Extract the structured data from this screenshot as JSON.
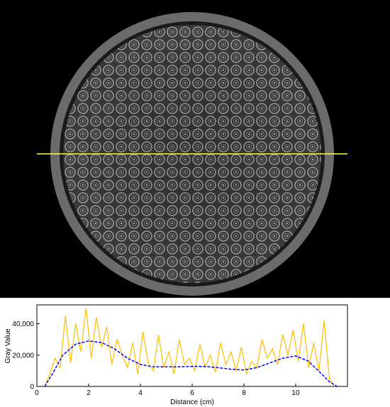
{
  "colors": {
    "background_top": "#000000",
    "ring": "#6b6b6b",
    "scan_line": "#ffff33",
    "raw_series": "#ffbf00",
    "smooth_series": "#0000ff"
  },
  "chart_data": {
    "type": "line",
    "xlabel": "Distance (cm)",
    "ylabel": "Gray Value",
    "xlim": [
      0,
      12
    ],
    "ylim": [
      0,
      52000
    ],
    "xticks": [
      "0",
      "2",
      "4",
      "6",
      "8",
      "10"
    ],
    "yticks": [
      "0",
      "20,000",
      "40,000"
    ],
    "xtick_values": [
      0,
      2,
      4,
      6,
      8,
      10
    ],
    "ytick_values": [
      0,
      20000,
      40000
    ],
    "grid": false,
    "legend": "none",
    "series": [
      {
        "style": "raw",
        "x": [
          0.3,
          0.5,
          0.7,
          0.9,
          1.1,
          1.3,
          1.5,
          1.7,
          1.9,
          2.1,
          2.3,
          2.5,
          2.7,
          2.9,
          3.1,
          3.3,
          3.5,
          3.7,
          3.9,
          4.1,
          4.3,
          4.5,
          4.7,
          4.9,
          5.1,
          5.3,
          5.5,
          5.7,
          5.9,
          6.1,
          6.3,
          6.5,
          6.7,
          6.9,
          7.1,
          7.3,
          7.5,
          7.7,
          7.9,
          8.1,
          8.3,
          8.5,
          8.7,
          8.9,
          9.1,
          9.3,
          9.5,
          9.7,
          9.9,
          10.1,
          10.3,
          10.5,
          10.7,
          10.9,
          11.1,
          11.3,
          11.5
        ],
        "y": [
          0,
          8000,
          18000,
          12000,
          45000,
          15000,
          40000,
          22000,
          50000,
          18000,
          44000,
          25000,
          38000,
          14000,
          30000,
          20000,
          12000,
          28000,
          8000,
          35000,
          15000,
          10000,
          33000,
          12000,
          22000,
          8000,
          30000,
          14000,
          18000,
          10000,
          27000,
          12000,
          20000,
          9000,
          28000,
          14000,
          22000,
          10000,
          25000,
          8000,
          16000,
          12000,
          30000,
          18000,
          24000,
          14000,
          33000,
          20000,
          36000,
          16000,
          40000,
          12000,
          28000,
          10000,
          42000,
          5000,
          0
        ]
      },
      {
        "style": "smooth",
        "x": [
          0.3,
          0.6,
          1.0,
          1.5,
          2.0,
          2.5,
          3.0,
          3.5,
          4.0,
          4.5,
          5.0,
          5.5,
          6.0,
          6.5,
          7.0,
          7.5,
          8.0,
          8.5,
          9.0,
          9.5,
          10.0,
          10.5,
          11.0,
          11.3,
          11.6
        ],
        "y": [
          0,
          8000,
          20000,
          27000,
          29000,
          28000,
          24000,
          18000,
          14000,
          12500,
          12500,
          12500,
          12800,
          12700,
          12000,
          11000,
          10500,
          12000,
          15000,
          18000,
          19500,
          16000,
          8000,
          3000,
          0
        ]
      }
    ]
  }
}
